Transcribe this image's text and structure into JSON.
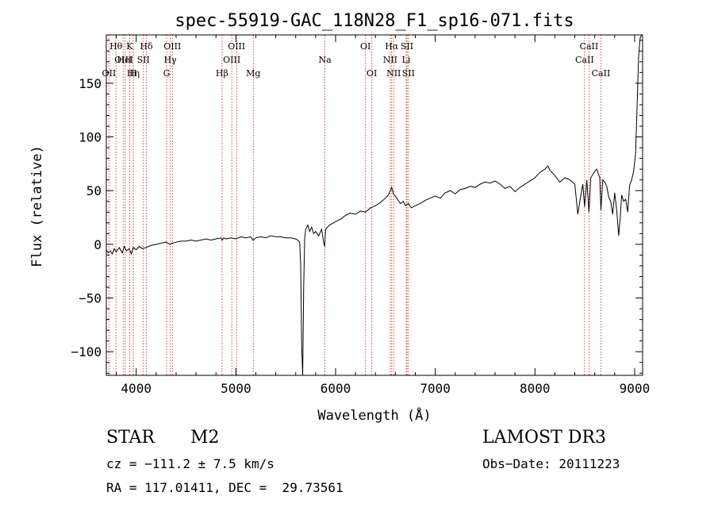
{
  "chart_data": {
    "type": "line",
    "title": "spec-55919-GAC_118N28_F1_sp16-071.fits",
    "xlabel": "Wavelength (Å)",
    "ylabel": "Flux (relative)",
    "xlim": [
      3700,
      9080
    ],
    "ylim": [
      -122,
      195
    ],
    "xticks": [
      4000,
      5000,
      6000,
      7000,
      8000,
      9000
    ],
    "yticks": [
      -100,
      -50,
      0,
      50,
      100,
      150
    ],
    "ytick_labels": [
      "−100",
      "−50",
      "0",
      "50",
      "100",
      "150"
    ],
    "series": [
      {
        "color": "#000000",
        "points": [
          [
            3700,
            -5
          ],
          [
            3720,
            -8
          ],
          [
            3740,
            -6
          ],
          [
            3760,
            -9
          ],
          [
            3780,
            -4
          ],
          [
            3800,
            -7
          ],
          [
            3830,
            -3
          ],
          [
            3860,
            -8
          ],
          [
            3880,
            -2
          ],
          [
            3900,
            -6
          ],
          [
            3930,
            -4
          ],
          [
            3950,
            -9
          ],
          [
            3970,
            -3
          ],
          [
            4000,
            -5
          ],
          [
            4030,
            -2
          ],
          [
            4060,
            -4
          ],
          [
            4100,
            -3
          ],
          [
            4150,
            -1
          ],
          [
            4200,
            0
          ],
          [
            4250,
            1
          ],
          [
            4300,
            2
          ],
          [
            4340,
            0
          ],
          [
            4360,
            1
          ],
          [
            4400,
            2
          ],
          [
            4450,
            3
          ],
          [
            4500,
            3
          ],
          [
            4550,
            4
          ],
          [
            4600,
            3
          ],
          [
            4650,
            4
          ],
          [
            4700,
            5
          ],
          [
            4750,
            4
          ],
          [
            4800,
            5
          ],
          [
            4850,
            6
          ],
          [
            4861,
            4
          ],
          [
            4880,
            6
          ],
          [
            4900,
            5
          ],
          [
            4950,
            6
          ],
          [
            5000,
            5
          ],
          [
            5050,
            7
          ],
          [
            5100,
            6
          ],
          [
            5150,
            7
          ],
          [
            5170,
            4
          ],
          [
            5200,
            6
          ],
          [
            5250,
            7
          ],
          [
            5300,
            6
          ],
          [
            5350,
            8
          ],
          [
            5400,
            7
          ],
          [
            5450,
            7
          ],
          [
            5500,
            6
          ],
          [
            5550,
            6
          ],
          [
            5600,
            5
          ],
          [
            5620,
            4
          ],
          [
            5640,
            2
          ],
          [
            5650,
            -20
          ],
          [
            5660,
            -95
          ],
          [
            5670,
            -122
          ],
          [
            5680,
            -40
          ],
          [
            5690,
            5
          ],
          [
            5700,
            14
          ],
          [
            5720,
            18
          ],
          [
            5740,
            12
          ],
          [
            5760,
            16
          ],
          [
            5780,
            10
          ],
          [
            5800,
            12
          ],
          [
            5830,
            8
          ],
          [
            5860,
            14
          ],
          [
            5880,
            2
          ],
          [
            5890,
            -2
          ],
          [
            5900,
            14
          ],
          [
            5940,
            18
          ],
          [
            5980,
            20
          ],
          [
            6020,
            22
          ],
          [
            6060,
            24
          ],
          [
            6100,
            27
          ],
          [
            6150,
            29
          ],
          [
            6200,
            28
          ],
          [
            6250,
            31
          ],
          [
            6300,
            30
          ],
          [
            6350,
            34
          ],
          [
            6400,
            36
          ],
          [
            6450,
            39
          ],
          [
            6500,
            43
          ],
          [
            6530,
            46
          ],
          [
            6550,
            50
          ],
          [
            6563,
            53
          ],
          [
            6580,
            47
          ],
          [
            6600,
            45
          ],
          [
            6620,
            42
          ],
          [
            6650,
            38
          ],
          [
            6680,
            40
          ],
          [
            6700,
            36
          ],
          [
            6730,
            38
          ],
          [
            6760,
            34
          ],
          [
            6800,
            36
          ],
          [
            6850,
            38
          ],
          [
            6900,
            41
          ],
          [
            6950,
            43
          ],
          [
            7000,
            45
          ],
          [
            7050,
            43
          ],
          [
            7100,
            48
          ],
          [
            7150,
            50
          ],
          [
            7200,
            47
          ],
          [
            7250,
            51
          ],
          [
            7300,
            52
          ],
          [
            7350,
            54
          ],
          [
            7400,
            53
          ],
          [
            7450,
            56
          ],
          [
            7500,
            58
          ],
          [
            7550,
            57
          ],
          [
            7600,
            59
          ],
          [
            7650,
            56
          ],
          [
            7700,
            52
          ],
          [
            7750,
            54
          ],
          [
            7800,
            49
          ],
          [
            7850,
            53
          ],
          [
            7900,
            56
          ],
          [
            7950,
            59
          ],
          [
            8000,
            62
          ],
          [
            8050,
            67
          ],
          [
            8100,
            70
          ],
          [
            8130,
            73
          ],
          [
            8150,
            69
          ],
          [
            8200,
            64
          ],
          [
            8250,
            58
          ],
          [
            8300,
            62
          ],
          [
            8350,
            60
          ],
          [
            8400,
            56
          ],
          [
            8430,
            28
          ],
          [
            8450,
            40
          ],
          [
            8480,
            56
          ],
          [
            8498,
            35
          ],
          [
            8520,
            60
          ],
          [
            8542,
            30
          ],
          [
            8560,
            62
          ],
          [
            8600,
            68
          ],
          [
            8620,
            70
          ],
          [
            8650,
            62
          ],
          [
            8662,
            32
          ],
          [
            8680,
            60
          ],
          [
            8700,
            58
          ],
          [
            8720,
            54
          ],
          [
            8740,
            44
          ],
          [
            8760,
            40
          ],
          [
            8780,
            28
          ],
          [
            8800,
            48
          ],
          [
            8820,
            32
          ],
          [
            8840,
            8
          ],
          [
            8855,
            24
          ],
          [
            8870,
            46
          ],
          [
            8890,
            40
          ],
          [
            8910,
            42
          ],
          [
            8930,
            30
          ],
          [
            8950,
            55
          ],
          [
            8970,
            60
          ],
          [
            8990,
            68
          ],
          [
            9010,
            85
          ],
          [
            9025,
            130
          ],
          [
            9040,
            175
          ],
          [
            9055,
            192
          ],
          [
            9070,
            195
          ],
          [
            9080,
            195
          ]
        ]
      }
    ],
    "lines": [
      {
        "label": "OII",
        "wavelength": 3727,
        "row": 3
      },
      {
        "label": "Hθ",
        "wavelength": 3797,
        "row": 1
      },
      {
        "label": "OIII",
        "wavelength": 3869,
        "row": 2
      },
      {
        "label": "HeI",
        "wavelength": 3889,
        "row": 2
      },
      {
        "label": "K",
        "wavelength": 3934,
        "row": 1
      },
      {
        "label": "Hη",
        "wavelength": 3970,
        "row": 3
      },
      {
        "label": "SII",
        "wavelength": 4072,
        "row": 2
      },
      {
        "label": "Hδ",
        "wavelength": 4102,
        "row": 1
      },
      {
        "label": "H",
        "wavelength": 3970,
        "row": 3
      },
      {
        "label": "G",
        "wavelength": 4305,
        "row": 3
      },
      {
        "label": "OIII",
        "wavelength": 4363,
        "row": 1
      },
      {
        "label": "Hγ",
        "wavelength": 4341,
        "row": 2
      },
      {
        "label": "Hβ",
        "wavelength": 4861,
        "row": 3
      },
      {
        "label": "OIII",
        "wavelength": 4959,
        "row": 2
      },
      {
        "label": "OIII",
        "wavelength": 5007,
        "row": 1
      },
      {
        "label": "Mg",
        "wavelength": 5175,
        "row": 3
      },
      {
        "label": "Na",
        "wavelength": 5893,
        "row": 2
      },
      {
        "label": "OI",
        "wavelength": 6300,
        "row": 1
      },
      {
        "label": "OI",
        "wavelength": 6364,
        "row": 3
      },
      {
        "label": "NII",
        "wavelength": 6548,
        "row": 2
      },
      {
        "label": "Hα",
        "wavelength": 6563,
        "row": 1
      },
      {
        "label": "NII",
        "wavelength": 6583,
        "row": 3
      },
      {
        "label": "Li",
        "wavelength": 6708,
        "row": 2
      },
      {
        "label": "SII",
        "wavelength": 6716,
        "row": 1
      },
      {
        "label": "SII",
        "wavelength": 6731,
        "row": 3
      },
      {
        "label": "CaII",
        "wavelength": 8498,
        "row": 2
      },
      {
        "label": "CaII",
        "wavelength": 8542,
        "row": 1
      },
      {
        "label": "CaII",
        "wavelength": 8662,
        "row": 3
      }
    ]
  },
  "info": {
    "class": "STAR",
    "subclass": "M2",
    "survey": "LAMOST DR3",
    "cz": "cz = −111.2 ± 7.5 km/s",
    "obs_date": "Obs−Date: 20111223",
    "radec": "RA = 117.01411, DEC =  29.73561"
  },
  "colors": {
    "spectrum": "#000000",
    "line_markers": "#cc2222",
    "axes": "#000000"
  }
}
